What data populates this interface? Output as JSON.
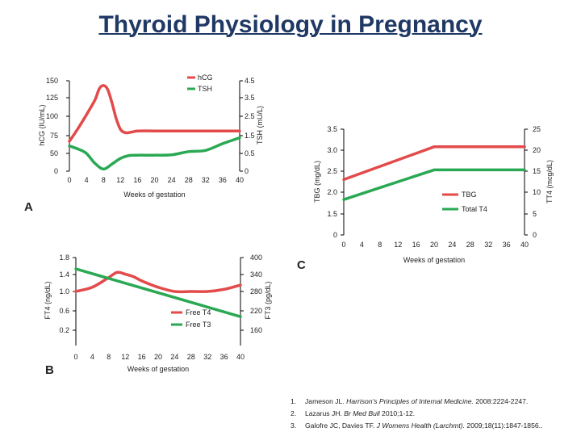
{
  "slide": {
    "title": "Thyroid Physiology in Pregnancy"
  },
  "panel_labels": {
    "a": "A",
    "b": "B",
    "c": "C"
  },
  "colors": {
    "red": "#e34a4a",
    "green": "#2aa853",
    "title": "#1f3864",
    "axis": "#000000"
  },
  "chart_data": [
    {
      "id": "A",
      "type": "line",
      "xlabel": "Weeks of gestation",
      "ylabel_left": "hCG (IU/mL)",
      "ylabel_right": "TSH (mU/L)",
      "x_ticks": [
        "0",
        "4",
        "8",
        "12",
        "16",
        "20",
        "24",
        "28",
        "32",
        "36",
        "40"
      ],
      "y_left_ticks": [
        "0",
        "50",
        "75",
        "100",
        "125",
        "150"
      ],
      "y_right_ticks": [
        "0",
        "0.5",
        "1.5",
        "2.5",
        "3.5",
        "4.5"
      ],
      "xlim": [
        0,
        40
      ],
      "legend_position": "top-right",
      "series": [
        {
          "name": "hCG",
          "axis": "left",
          "color": "red",
          "x": [
            0,
            2,
            4,
            6,
            7,
            8,
            9,
            10,
            11,
            12,
            13,
            14,
            15,
            16,
            20,
            24,
            28,
            32,
            36,
            40
          ],
          "y": [
            67,
            84,
            102,
            122,
            138,
            143,
            137,
            118,
            97,
            83,
            79,
            79,
            80,
            81,
            81,
            81,
            81,
            81,
            81,
            81
          ]
        },
        {
          "name": "TSH",
          "axis": "right",
          "color": "green",
          "x": [
            0,
            2,
            4,
            6,
            8,
            10,
            12,
            14,
            16,
            20,
            24,
            28,
            32,
            36,
            40
          ],
          "y": [
            0.92,
            0.75,
            0.5,
            0.22,
            0.06,
            0.2,
            0.36,
            0.44,
            0.45,
            0.45,
            0.46,
            0.6,
            0.67,
            1.05,
            1.38
          ]
        }
      ]
    },
    {
      "id": "B",
      "type": "line",
      "xlabel": "Weeks of gestation",
      "ylabel_left": "FT4 (ng/dL)",
      "ylabel_right": "FT3 (pg/dL)",
      "x_ticks": [
        "0",
        "4",
        "8",
        "12",
        "16",
        "20",
        "24",
        "28",
        "32",
        "36",
        "40"
      ],
      "y_left_ticks": [
        "0.2",
        "0.6",
        "1.0",
        "1.4",
        "1.8"
      ],
      "y_right_ticks": [
        "160",
        "220",
        "280",
        "340",
        "400"
      ],
      "xlim": [
        0,
        40
      ],
      "legend_position": "lower-right",
      "series": [
        {
          "name": "Free T4",
          "axis": "left",
          "color": "red",
          "x": [
            0,
            4,
            8,
            10,
            12,
            14,
            16,
            20,
            24,
            28,
            32,
            36,
            40
          ],
          "y": [
            1.0,
            1.1,
            1.33,
            1.45,
            1.41,
            1.35,
            1.25,
            1.1,
            1.0,
            1.0,
            1.0,
            1.05,
            1.15
          ]
        },
        {
          "name": "Free T3",
          "axis": "right",
          "color": "green",
          "x": [
            0,
            40
          ],
          "y": [
            360,
            202
          ]
        }
      ]
    },
    {
      "id": "C",
      "type": "line",
      "xlabel": "Weeks of gestation",
      "ylabel_left": "TBG (mg/dL)",
      "ylabel_right": "TT4 (mcg/dL)",
      "x_ticks": [
        "0",
        "4",
        "8",
        "12",
        "16",
        "20",
        "24",
        "28",
        "32",
        "36",
        "40"
      ],
      "y_left_ticks": [
        "0",
        "1.5",
        "2.0",
        "2.5",
        "3.0",
        "3.5"
      ],
      "y_right_ticks": [
        "0",
        "5",
        "10",
        "15",
        "20",
        "25"
      ],
      "xlim": [
        0,
        40
      ],
      "legend_position": "lower-right",
      "series": [
        {
          "name": "TBG",
          "axis": "left",
          "color": "red",
          "x": [
            0,
            20,
            22,
            40
          ],
          "y": [
            2.3,
            3.08,
            3.08,
            3.08
          ]
        },
        {
          "name": "Total T4",
          "axis": "right",
          "color": "green",
          "x": [
            0,
            20,
            40
          ],
          "y": [
            8.3,
            15.3,
            15.3
          ]
        }
      ]
    }
  ],
  "references": [
    {
      "num": "1.",
      "authors": "Jameson JL. ",
      "journal": "Harrison's Principles of Internal Medicine.",
      "rest": " 2008:2224-2247."
    },
    {
      "num": "2.",
      "authors": "Lazarus JH. ",
      "journal": "Br Med Bull",
      "rest": " 2010;1-12."
    },
    {
      "num": "3.",
      "authors": "Galofre JC, Davies TF. ",
      "journal": "J Womens Health (Larchmt).",
      "rest": " 2009;18(11):1847-1856.."
    }
  ]
}
